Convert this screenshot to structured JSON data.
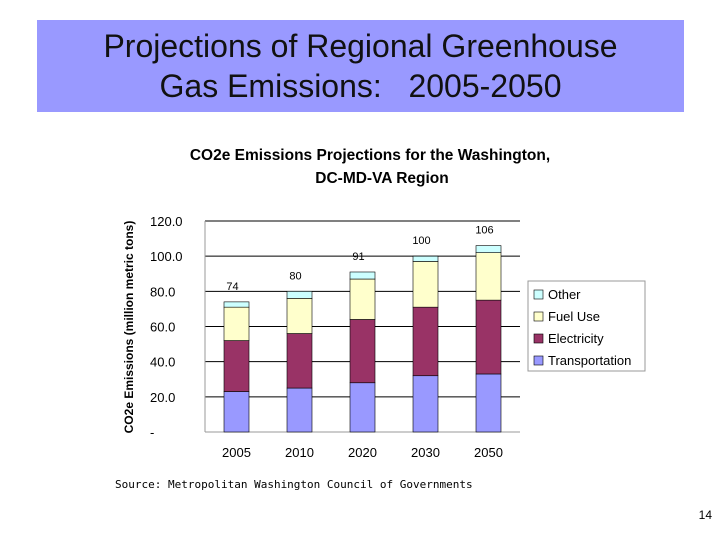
{
  "slide": {
    "title_line1": "Projections of Regional Greenhouse",
    "title_line2": "Gas Emissions:   2005-2050",
    "source": "Source:  Metropolitan Washington Council of Governments",
    "page_number": "14"
  },
  "colors": {
    "title_bg": "#9999ff",
    "Other": "#ccffff",
    "Fuel Use": "#ffffcc",
    "Electricity": "#993366",
    "Transportation": "#9999ff"
  },
  "chart_data": {
    "type": "bar",
    "stacked": true,
    "title_line1": "CO2e Emissions Projections for the Washington,",
    "title_line2": "DC-MD-VA Region",
    "ylabel": "CO2e Emissions (million metric tons)",
    "xlabel": "",
    "categories": [
      "2005",
      "2010",
      "2020",
      "2030",
      "2050"
    ],
    "series": [
      {
        "name": "Transportation",
        "values": [
          23,
          25,
          28,
          32,
          33
        ]
      },
      {
        "name": "Electricity",
        "values": [
          29,
          31,
          36,
          39,
          42
        ]
      },
      {
        "name": "Fuel Use",
        "values": [
          19,
          20,
          23,
          26,
          27
        ]
      },
      {
        "name": "Other",
        "values": [
          3,
          4,
          4,
          3,
          4
        ]
      }
    ],
    "totals": [
      "74",
      "80",
      "91",
      "100",
      "106"
    ],
    "ylim": [
      0,
      120
    ],
    "yticks": [
      0,
      20,
      40,
      60,
      80,
      100,
      120
    ],
    "ytick_labels": [
      "-",
      "20.0",
      "40.0",
      "60.0",
      "80.0",
      "100.0",
      "120.0"
    ],
    "legend_order": [
      "Other",
      "Fuel Use",
      "Electricity",
      "Transportation"
    ],
    "legend_position": "right",
    "grid": true
  }
}
